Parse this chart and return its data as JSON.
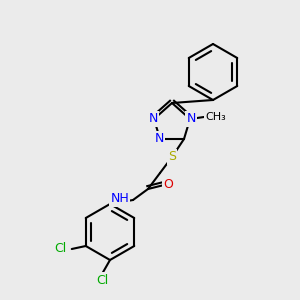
{
  "bg_color": "#ebebeb",
  "bond_color": "#000000",
  "bond_width": 1.5,
  "atom_colors": {
    "N": "#0000ff",
    "O": "#dd0000",
    "S": "#aaaa00",
    "Cl": "#00aa00",
    "C": "#000000"
  },
  "font_size": 9,
  "font_size_small": 8
}
